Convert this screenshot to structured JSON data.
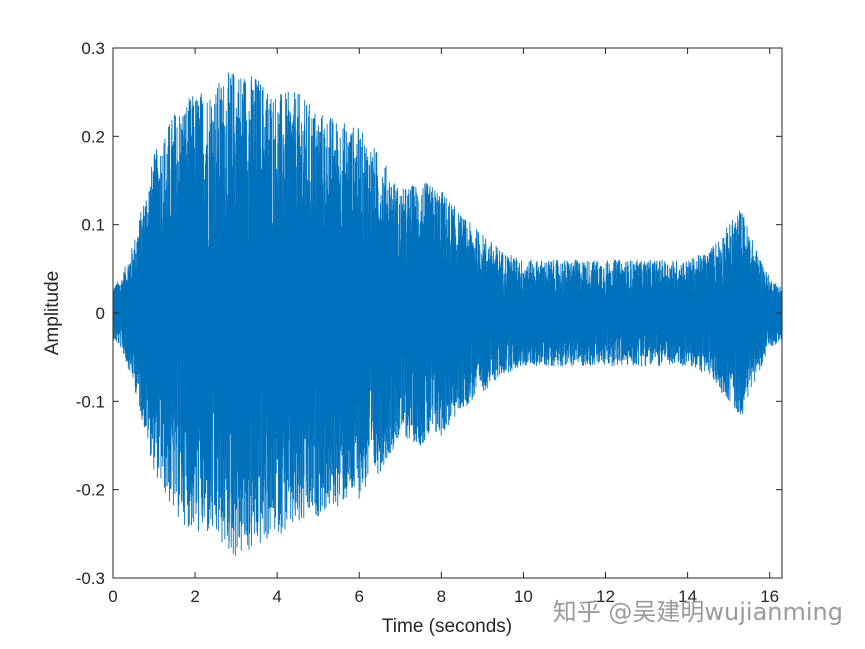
{
  "chart_data": {
    "type": "line",
    "xlabel": "Time (seconds)",
    "ylabel": "Amplitude",
    "xlim": [
      0,
      16.3
    ],
    "ylim": [
      -0.3,
      0.3
    ],
    "xticks": [
      "0",
      "2",
      "4",
      "6",
      "8",
      "10",
      "12",
      "14",
      "16"
    ],
    "yticks": [
      "0.3",
      "0.2",
      "0.1",
      "0",
      "-0.1",
      "-0.2",
      "-0.3"
    ],
    "grid": false,
    "series": [
      {
        "color": "#0072BD",
        "envelope": {
          "t": [
            0,
            0.2,
            0.5,
            0.8,
            1.0,
            1.5,
            2.0,
            2.5,
            3.0,
            3.5,
            4.0,
            4.5,
            5.0,
            5.5,
            6.0,
            6.5,
            7.0,
            7.5,
            8.0,
            8.5,
            9.0,
            9.5,
            10.0,
            11.0,
            12.0,
            13.0,
            14.0,
            14.5,
            15.0,
            15.3,
            15.6,
            16.0,
            16.3
          ],
          "peak": [
            0.03,
            0.04,
            0.08,
            0.14,
            0.18,
            0.23,
            0.25,
            0.26,
            0.28,
            0.27,
            0.25,
            0.25,
            0.23,
            0.22,
            0.21,
            0.18,
            0.14,
            0.15,
            0.14,
            0.11,
            0.09,
            0.07,
            0.06,
            0.06,
            0.06,
            0.06,
            0.06,
            0.07,
            0.1,
            0.12,
            0.08,
            0.04,
            0.03
          ]
        }
      }
    ]
  },
  "watermark": "知乎 @吴建明wujianming"
}
